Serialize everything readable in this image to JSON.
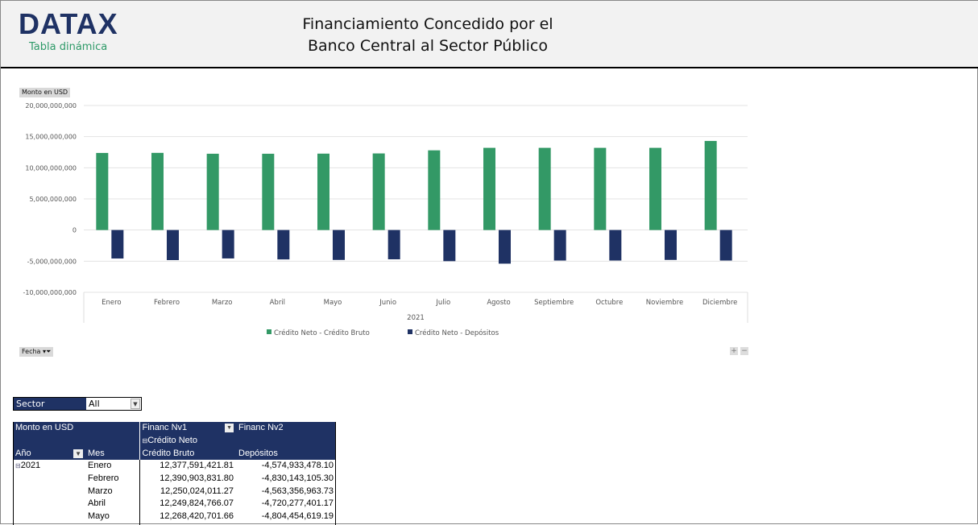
{
  "header": {
    "logo": "DATAX",
    "subtitle": "Tabla dinámica",
    "title_line1": "Financiamiento Concedido por el",
    "title_line2": "Banco Central al Sector Público"
  },
  "chart_buttons": {
    "value_field": "Monto en USD",
    "filter_field": "Fecha",
    "expand": "+",
    "collapse": "−"
  },
  "chart_data": {
    "type": "bar",
    "categories": [
      "Enero",
      "Febrero",
      "Marzo",
      "Abril",
      "Mayo",
      "Junio",
      "Julio",
      "Agosto",
      "Septiembre",
      "Octubre",
      "Noviembre",
      "Diciembre"
    ],
    "group_label": "2021",
    "ylim": [
      -10000000000,
      20000000000
    ],
    "yticks": [
      "20,000,000,000",
      "15,000,000,000",
      "10,000,000,000",
      "5,000,000,000",
      "0",
      "-5,000,000,000",
      "-10,000,000,000"
    ],
    "ytick_values": [
      20000000000,
      15000000000,
      10000000000,
      5000000000,
      0,
      -5000000000,
      -10000000000
    ],
    "grid": true,
    "legend_position": "bottom",
    "series": [
      {
        "name": "Crédito Neto - Crédito Bruto",
        "color": "#339966",
        "values": [
          12377591421.81,
          12390903831.8,
          12250024011.27,
          12249824766.07,
          12268420701.66,
          12300000000,
          12800000000,
          13200000000,
          13200000000,
          13200000000,
          13200000000,
          14300000000
        ]
      },
      {
        "name": "Crédito Neto - Depósitos",
        "color": "#1f3264",
        "values": [
          -4574933478.1,
          -4830143105.3,
          -4563356963.73,
          -4720277401.17,
          -4804454619.19,
          -4700000000,
          -5000000000,
          -5400000000,
          -4900000000,
          -4900000000,
          -4800000000,
          -4900000000
        ]
      }
    ]
  },
  "filter": {
    "label": "Sector",
    "value": "All"
  },
  "pivot": {
    "value_label": "Monto en USD",
    "col1": "Financ Nv1",
    "col2": "Financ Nv2",
    "group": "Crédito Neto",
    "row1": "Año",
    "row2": "Mes",
    "h1": "Crédito Bruto",
    "h2": "Depósitos",
    "year": "2021",
    "rows": [
      {
        "mes": "Enero",
        "bruto": "12,377,591,421.81",
        "dep": "-4,574,933,478.10"
      },
      {
        "mes": "Febrero",
        "bruto": "12,390,903,831.80",
        "dep": "-4,830,143,105.30"
      },
      {
        "mes": "Marzo",
        "bruto": "12,250,024,011.27",
        "dep": "-4,563,356,963.73"
      },
      {
        "mes": "Abril",
        "bruto": "12,249,824,766.07",
        "dep": "-4,720,277,401.17"
      },
      {
        "mes": "Mayo",
        "bruto": "12,268,420,701.66",
        "dep": "-4,804,454,619.19"
      }
    ]
  }
}
